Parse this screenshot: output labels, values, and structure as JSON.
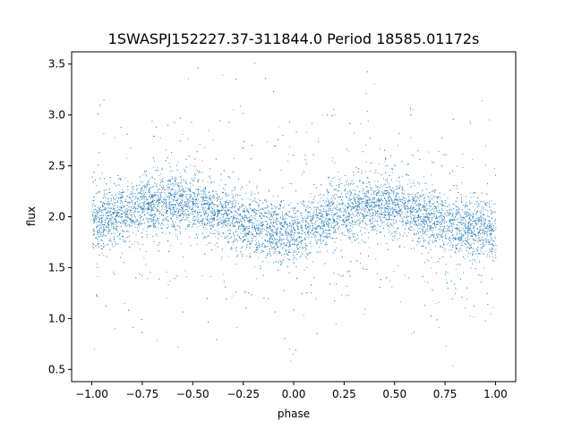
{
  "chart_data": {
    "type": "scatter",
    "title": "1SWASPJ152227.37-311844.0 Period 18585.01172s",
    "xlabel": "phase",
    "ylabel": "flux",
    "xlim": [
      -1.1,
      1.1
    ],
    "ylim": [
      0.38,
      3.62
    ],
    "xticks": [
      -1.0,
      -0.75,
      -0.5,
      -0.25,
      0.0,
      0.25,
      0.5,
      0.75,
      1.0
    ],
    "xtick_labels": [
      "−1.00",
      "−0.75",
      "−0.50",
      "−0.25",
      "0.00",
      "0.25",
      "0.50",
      "0.75",
      "1.00"
    ],
    "yticks": [
      0.5,
      1.0,
      1.5,
      2.0,
      2.5,
      3.0,
      3.5
    ],
    "ytick_labels": [
      "0.5",
      "1.0",
      "1.5",
      "2.0",
      "2.5",
      "3.0",
      "3.5"
    ],
    "grid": false,
    "legend": "none",
    "marker_color": "#1f77b4",
    "phase_range": [
      -1.0,
      1.0
    ],
    "curve_phase": [
      -1.0,
      -0.875,
      -0.75,
      -0.625,
      -0.5,
      -0.375,
      -0.25,
      -0.125,
      0.0,
      0.125,
      0.25,
      0.375,
      0.5,
      0.625,
      0.75,
      0.875,
      1.0
    ],
    "curve_flux": [
      1.95,
      2.02,
      2.1,
      2.14,
      2.12,
      2.04,
      1.94,
      1.88,
      1.85,
      1.96,
      2.07,
      2.13,
      2.1,
      2.02,
      1.93,
      1.88,
      1.86
    ],
    "scatter_sigma": 0.14,
    "outlier_fraction": 0.12,
    "flux_range": [
      0.5,
      3.55
    ]
  }
}
